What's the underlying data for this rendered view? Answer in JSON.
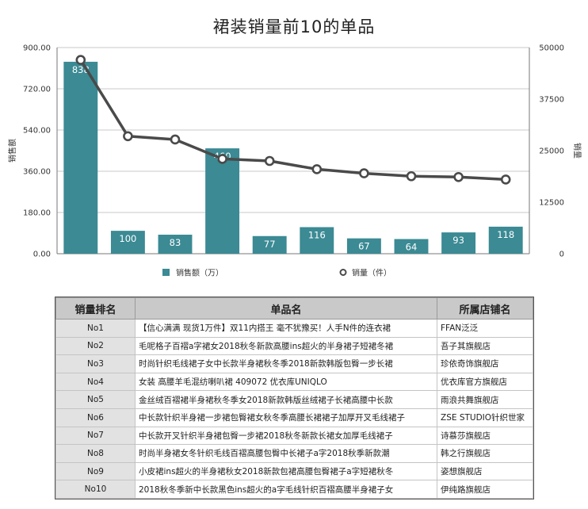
{
  "chart_data": {
    "type": "bar",
    "title": "裙装销量前10的单品",
    "y_left_label": "销售额",
    "y_right_label": "销量",
    "y_left_ticks": [
      "900.00",
      "720.00",
      "540.00",
      "360.00",
      "180.00",
      "0.00"
    ],
    "y_right_ticks": [
      "50000",
      "37500",
      "25000",
      "12500",
      "0"
    ],
    "ylim_left": [
      0,
      900
    ],
    "ylim_right": [
      0,
      50000
    ],
    "grid": true,
    "legend_position": "bottom",
    "colors": {
      "bar": "#3b8a94",
      "line": "#4a4a4a"
    },
    "series": [
      {
        "name": "销售额（万）",
        "type": "bar",
        "axis": "left",
        "values": [
          838,
          100,
          83,
          460,
          77,
          116,
          67,
          64,
          93,
          118
        ]
      },
      {
        "name": "销量（件）",
        "type": "line",
        "axis": "right",
        "values": [
          47000,
          28500,
          27700,
          23000,
          22500,
          20500,
          19500,
          18800,
          18600,
          18000
        ]
      }
    ]
  },
  "table": {
    "headers": [
      "销量排名",
      "单品名",
      "所属店铺名"
    ],
    "rows": [
      {
        "rank": "No1",
        "product": "【信心满满 现货1万件】双11内搭王 毫不犹豫买！人手N件的连衣裙",
        "shop": "FFAN泛泛"
      },
      {
        "rank": "No2",
        "product": "毛呢格子百褶a字裙女2018秋冬新款高腰ins超火的半身裙子短裙冬裙",
        "shop": "吾子其旗舰店"
      },
      {
        "rank": "No3",
        "product": "时尚针织毛线裙子女中长款半身裙秋冬季2018新款韩版包臀一步长裙",
        "shop": "珍依奇饰旗舰店"
      },
      {
        "rank": "No4",
        "product": "女装 高腰羊毛混纺喇叭裙 409072 优衣库UNIQLO",
        "shop": "优衣库官方旗舰店"
      },
      {
        "rank": "No5",
        "product": "金丝绒百褶裙半身裙秋冬季女2018新款韩版丝绒裙子长裙高腰中长款",
        "shop": "雨浪共舞旗舰店"
      },
      {
        "rank": "No6",
        "product": "中长款针织半身裙一步裙包臀裙女秋冬季高腰长裙裙子加厚开叉毛线裙子",
        "shop": "ZSE STUDIO针织世家"
      },
      {
        "rank": "No7",
        "product": "中长款开叉针织半身裙包臀一步裙2018秋冬新款长裙女加厚毛线裙子",
        "shop": "诗慕莎旗舰店"
      },
      {
        "rank": "No8",
        "product": "时尚半身裙女冬针织毛线百褶高腰包臀中长裙子a字2018秋季新款潮",
        "shop": "韩之行旗舰店"
      },
      {
        "rank": "No9",
        "product": "小皮裙ins超火的半身裙秋女2018新款包裙高腰包臀裙子a字短裙秋冬",
        "shop": "姿想旗舰店"
      },
      {
        "rank": "No10",
        "product": "2018秋冬季新中长款黑色ins超火的a字毛线针织百褶高腰半身裙子女",
        "shop": "伊纯路旗舰店"
      }
    ]
  }
}
